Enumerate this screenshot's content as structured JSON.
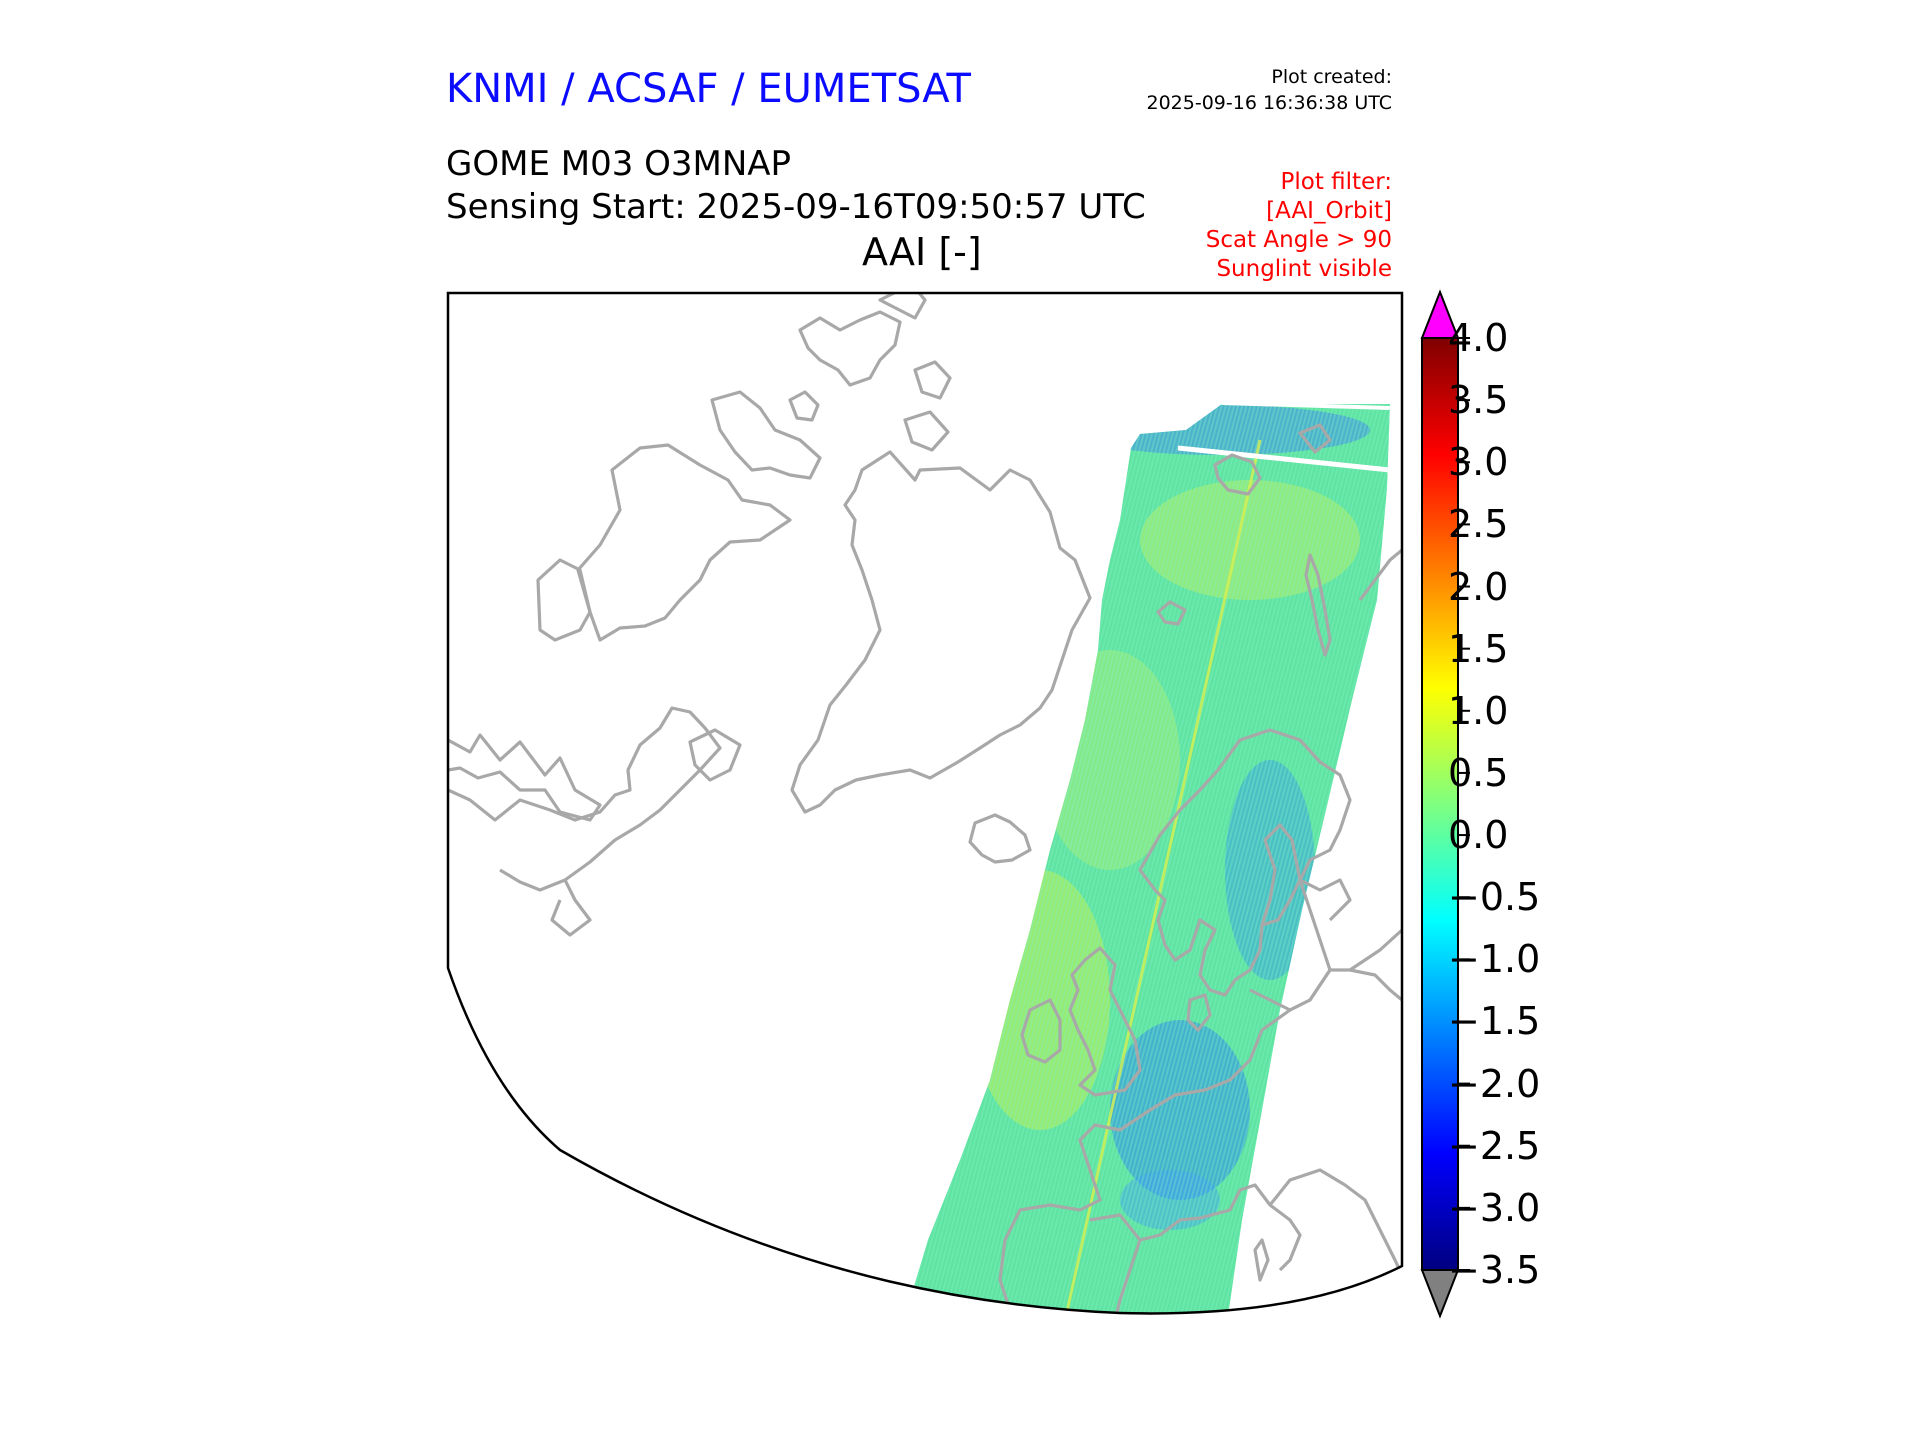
{
  "header": {
    "organization": "KNMI / ACSAF / EUMETSAT",
    "created_label": "Plot created:",
    "created_time": "2025-09-16 16:36:38 UTC",
    "product_title": "GOME M03 O3MNAP",
    "sensing_start": "Sensing Start: 2025-09-16T09:50:57 UTC",
    "variable": "AAI [-]"
  },
  "filter": {
    "label": "Plot filter:",
    "lines": [
      "[AAI_Orbit]",
      "Scat Angle > 90",
      "Sunglint visible"
    ]
  },
  "colorbar": {
    "min": -3.5,
    "max": 4.0,
    "ticks": [
      "4.0",
      "3.5",
      "3.0",
      "2.5",
      "2.0",
      "1.5",
      "1.0",
      "0.5",
      "0.0",
      "−0.5",
      "−1.0",
      "−1.5",
      "−2.0",
      "−2.5",
      "−3.0",
      "−3.5"
    ],
    "tick_values": [
      4.0,
      3.5,
      3.0,
      2.5,
      2.0,
      1.5,
      1.0,
      0.5,
      0.0,
      -0.5,
      -1.0,
      -1.5,
      -2.0,
      -2.5,
      -3.0,
      -3.5
    ],
    "colormap": "jet",
    "over_color": "#ff00ff",
    "under_color": "#808080"
  },
  "colors": {
    "coastline": "#a8a8a8",
    "swath_base": "#5fe3a0",
    "organization_text": "#0b0bff",
    "filter_text": "#ff0000"
  }
}
